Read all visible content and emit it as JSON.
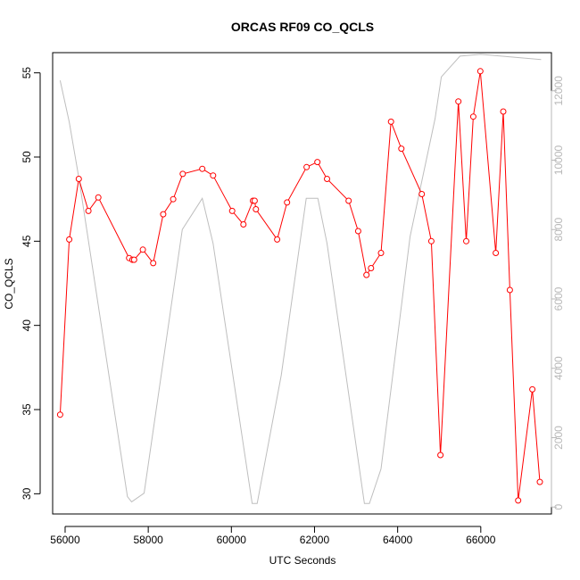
{
  "chart_data": {
    "type": "line",
    "title": "ORCAS RF09 CO_QCLS",
    "xlabel": "UTC Seconds",
    "ylabel": "CO_QCLS",
    "xlim": [
      55700,
      67700
    ],
    "ylim": [
      28.8,
      56.2
    ],
    "y2lim": [
      -200,
      13100
    ],
    "x_ticks": [
      56000,
      58000,
      60000,
      62000,
      64000,
      66000
    ],
    "y_ticks": [
      30,
      35,
      40,
      45,
      50,
      55
    ],
    "y2_ticks": [
      0,
      2000,
      4000,
      6000,
      8000,
      10000,
      12000
    ],
    "colors": {
      "primary": "#ff0000",
      "secondary": "#bebebe"
    },
    "series": [
      {
        "role": "primary",
        "markers": "open-circle",
        "x": [
          55880,
          56100,
          56330,
          56560,
          56800,
          57540,
          57620,
          57660,
          57870,
          58120,
          58360,
          58600,
          58830,
          59300,
          59560,
          60020,
          60290,
          60520,
          60560,
          60590,
          61100,
          61340,
          61810,
          62070,
          62300,
          62820,
          63050,
          63250,
          63360,
          63600,
          63840,
          64090,
          64580,
          64810,
          65030,
          65460,
          65650,
          65820,
          65990,
          66360,
          66540,
          66700,
          66900,
          67240,
          67420
        ],
        "y": [
          34.7,
          45.1,
          48.7,
          46.8,
          47.6,
          44.0,
          43.9,
          43.9,
          44.5,
          43.7,
          46.6,
          47.5,
          49.0,
          49.3,
          48.9,
          46.8,
          46.0,
          47.4,
          47.4,
          46.9,
          45.1,
          47.3,
          49.4,
          49.7,
          48.7,
          47.4,
          45.6,
          43.0,
          43.4,
          44.3,
          52.1,
          50.5,
          47.8,
          45.0,
          32.3,
          53.3,
          45.0,
          52.4,
          55.1,
          44.3,
          52.7,
          42.1,
          29.6,
          36.2,
          30.7
        ]
      },
      {
        "role": "secondary",
        "markers": "none",
        "x": [
          55880,
          56100,
          56330,
          57500,
          57600,
          57900,
          58820,
          59300,
          59560,
          60500,
          60620,
          61200,
          61800,
          62080,
          62300,
          63200,
          63320,
          63600,
          64300,
          64900,
          65050,
          65500,
          66000,
          67450
        ],
        "y2": [
          12300,
          11100,
          9500,
          300,
          150,
          400,
          8000,
          8900,
          7600,
          100,
          100,
          3800,
          8900,
          8900,
          7600,
          100,
          100,
          1100,
          7800,
          11200,
          12400,
          13000,
          13050,
          12900
        ]
      }
    ]
  }
}
